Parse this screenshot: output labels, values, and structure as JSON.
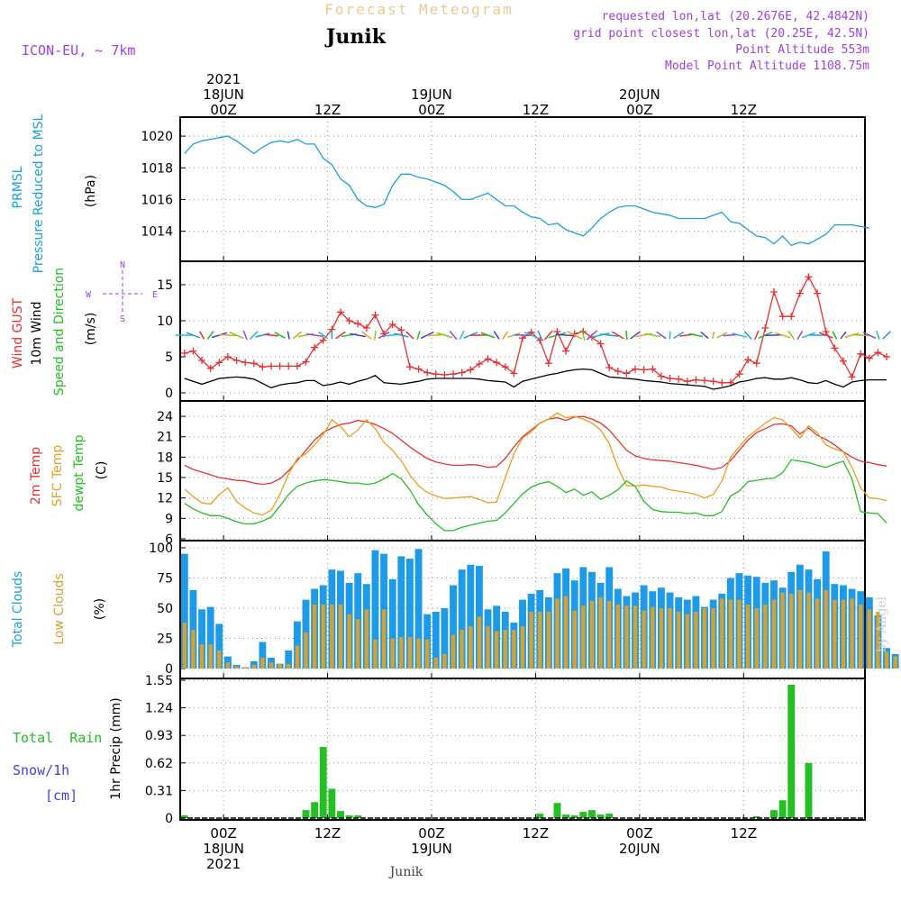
{
  "header": {
    "title_top": "Forecast Meteogram",
    "station": "Junik",
    "model": "ICON-EU, ~ 7km",
    "requested": "requested lon,lat (20.2676E, 42.4842N)",
    "gridpoint": "grid point closest lon,lat (20.25E, 42.5N)",
    "point_alt": "Point Altitude 553m",
    "model_alt": "Model Point Altitude 1108.75m",
    "footer_station": "Junik",
    "watermark": "by Angel"
  },
  "time_axis": {
    "top_labels": [
      {
        "line1": "2021",
        "line2": "18JUN",
        "line3": "00Z",
        "hour": 0
      },
      {
        "line1": "",
        "line2": "",
        "line3": "12Z",
        "hour": 12
      },
      {
        "line1": "",
        "line2": "19JUN",
        "line3": "00Z",
        "hour": 24
      },
      {
        "line1": "",
        "line2": "",
        "line3": "12Z",
        "hour": 36
      },
      {
        "line1": "",
        "line2": "20JUN",
        "line3": "00Z",
        "hour": 48
      },
      {
        "line1": "",
        "line2": "",
        "line3": "12Z",
        "hour": 60
      }
    ],
    "bottom_labels": [
      {
        "line1": "00Z",
        "line2": "18JUN",
        "line3": "2021",
        "hour": 0
      },
      {
        "line1": "12Z",
        "line2": "",
        "line3": "",
        "hour": 12
      },
      {
        "line1": "00Z",
        "line2": "19JUN",
        "line3": "",
        "hour": 24
      },
      {
        "line1": "12Z",
        "line2": "",
        "line3": "",
        "hour": 36
      },
      {
        "line1": "00Z",
        "line2": "20JUN",
        "line3": "",
        "hour": 48
      },
      {
        "line1": "12Z",
        "line2": "",
        "line3": "",
        "hour": 60
      }
    ],
    "start_hour": -5,
    "end_hour": 74
  },
  "chart_data": [
    {
      "type": "line",
      "panel": "pressure",
      "ylabel_lines": [
        "PRMSL",
        "Pressure Reduced to MSL"
      ],
      "unit": "(hPa)",
      "ylim": [
        1012.5,
        1020.8
      ],
      "yticks": [
        1014,
        1016,
        1018,
        1020
      ],
      "start_hour": -4.5,
      "step_hours": 1,
      "series": [
        {
          "name": "PRMSL",
          "color": "#1aa0e0",
          "values": [
            1018.9,
            1019.5,
            1019.7,
            1019.8,
            1019.9,
            1020.0,
            1019.7,
            1019.3,
            1018.9,
            1019.3,
            1019.6,
            1019.7,
            1019.6,
            1019.8,
            1019.5,
            1019.5,
            1018.6,
            1018.2,
            1017.3,
            1016.9,
            1016.0,
            1015.6,
            1015.5,
            1015.7,
            1016.9,
            1017.6,
            1017.6,
            1017.4,
            1017.3,
            1017.1,
            1016.9,
            1016.5,
            1016.0,
            1016.0,
            1016.2,
            1016.4,
            1016.0,
            1015.6,
            1015.6,
            1015.2,
            1014.9,
            1014.8,
            1014.4,
            1014.5,
            1014.1,
            1013.9,
            1013.7,
            1014.2,
            1014.8,
            1015.2,
            1015.5,
            1015.6,
            1015.6,
            1015.4,
            1015.2,
            1015.1,
            1015.0,
            1014.8,
            1014.8,
            1014.8,
            1014.8,
            1015.0,
            1015.2,
            1014.6,
            1014.5,
            1014.1,
            1013.7,
            1013.6,
            1013.2,
            1013.7,
            1013.1,
            1013.3,
            1013.2,
            1013.5,
            1013.8,
            1014.4,
            1014.4,
            1014.4,
            1014.3,
            1014.2
          ]
        }
      ]
    },
    {
      "type": "line",
      "panel": "wind",
      "ylabel_lines": [
        "Wind GUST",
        "10m Wind",
        "Speed and Direction"
      ],
      "unit": "(m/s)",
      "compass": {
        "n": "N",
        "s": "S",
        "e": "E",
        "w": "W"
      },
      "ylim": [
        -0.5,
        17.5
      ],
      "yticks": [
        0,
        5,
        10,
        15
      ],
      "start_hour": -4.5,
      "step_hours": 1,
      "series": [
        {
          "name": "Wind GUST",
          "color": "#e83030",
          "marker": "+",
          "values": [
            5.5,
            5.8,
            4.5,
            3.4,
            4.2,
            5.0,
            4.5,
            4.2,
            4.1,
            3.6,
            3.7,
            3.7,
            3.7,
            3.7,
            4.3,
            6.3,
            7.3,
            8.8,
            11.2,
            10.0,
            9.6,
            9.0,
            10.8,
            8.2,
            9.5,
            8.7,
            3.6,
            3.3,
            2.8,
            2.6,
            2.5,
            2.6,
            2.8,
            3.2,
            4.0,
            4.7,
            4.2,
            3.6,
            2.7,
            7.6,
            8.4,
            7.3,
            4.1,
            8.5,
            5.8,
            8.2,
            8.5,
            7.7,
            6.8,
            3.5,
            3.0,
            2.7,
            3.3,
            3.2,
            3.3,
            2.3,
            2.0,
            1.9,
            1.6,
            1.8,
            1.7,
            1.6,
            1.4,
            1.4,
            2.6,
            4.6,
            4.1,
            9.0,
            14.0,
            10.6,
            10.6,
            13.8,
            16.1,
            13.8,
            8.5,
            6.2,
            4.4,
            2.2,
            5.4,
            4.8,
            5.6,
            5.0
          ]
        },
        {
          "name": "10m Wind",
          "color": "#000000",
          "values": [
            2.0,
            1.6,
            1.2,
            1.6,
            2.0,
            2.1,
            2.2,
            2.1,
            1.9,
            1.3,
            0.7,
            1.1,
            1.3,
            1.4,
            1.7,
            1.7,
            1.0,
            1.2,
            1.5,
            1.2,
            1.6,
            1.9,
            2.4,
            1.4,
            1.3,
            1.2,
            1.4,
            1.6,
            1.9,
            2.0,
            2.0,
            2.0,
            2.0,
            2.0,
            1.9,
            1.7,
            1.6,
            1.5,
            0.8,
            1.6,
            1.9,
            2.2,
            2.5,
            2.7,
            3.0,
            3.2,
            3.3,
            3.2,
            2.7,
            2.2,
            2.1,
            2.0,
            1.9,
            1.7,
            1.6,
            1.5,
            1.3,
            1.2,
            1.1,
            1.0,
            0.9,
            0.5,
            0.7,
            1.0,
            1.5,
            1.7,
            2.0,
            2.1,
            1.9,
            1.9,
            2.1,
            1.8,
            1.4,
            1.3,
            1.7,
            1.2,
            0.8,
            1.5,
            1.7,
            1.8,
            1.8,
            1.8
          ]
        }
      ]
    },
    {
      "type": "line",
      "panel": "temperature",
      "ylabel_lines": [
        "2m Temp",
        "SFC Temp",
        "dewpt Temp"
      ],
      "unit": "(C)",
      "ylim": [
        6,
        25.2
      ],
      "yticks": [
        6,
        9,
        12,
        15,
        18,
        21,
        24
      ],
      "start_hour": -4.5,
      "step_hours": 1,
      "series": [
        {
          "name": "2m Temp",
          "color": "#e83030",
          "values": [
            16.8,
            16.2,
            15.8,
            15.4,
            15.0,
            14.8,
            14.6,
            14.5,
            14.2,
            14.0,
            14.2,
            14.8,
            16.0,
            17.5,
            19.0,
            20.5,
            21.6,
            22.3,
            22.8,
            23.0,
            23.4,
            23.2,
            22.8,
            22.2,
            21.5,
            20.5,
            19.5,
            18.6,
            17.8,
            17.3,
            17.0,
            16.8,
            16.8,
            16.9,
            16.8,
            16.5,
            16.6,
            17.8,
            19.5,
            21.0,
            22.0,
            23.0,
            23.6,
            23.8,
            23.4,
            23.9,
            24.0,
            23.6,
            23.0,
            22.0,
            20.5,
            19.0,
            18.2,
            17.8,
            17.6,
            17.5,
            17.4,
            17.2,
            17.0,
            16.8,
            16.5,
            16.2,
            16.5,
            17.5,
            19.0,
            20.5,
            21.6,
            22.2,
            22.8,
            22.9,
            22.6,
            21.4,
            22.3,
            21.2,
            20.6,
            19.8,
            18.8,
            18.0,
            17.4,
            17.2,
            16.9,
            16.7
          ]
        },
        {
          "name": "SFC Temp",
          "color": "#e8a020",
          "values": [
            13.3,
            12.2,
            11.3,
            11.1,
            12.5,
            13.5,
            11.5,
            10.5,
            9.8,
            9.5,
            10.2,
            12.5,
            15.5,
            17.8,
            18.5,
            19.8,
            21.3,
            23.5,
            22.5,
            21.0,
            22.0,
            23.5,
            22.2,
            20.2,
            19.0,
            17.5,
            15.4,
            13.8,
            12.8,
            12.3,
            11.9,
            12.0,
            12.1,
            12.2,
            11.8,
            11.3,
            11.4,
            15.0,
            18.5,
            20.8,
            21.7,
            23.0,
            23.6,
            24.5,
            23.8,
            24.0,
            23.6,
            23.0,
            22.0,
            20.0,
            16.5,
            13.8,
            13.8,
            13.9,
            13.7,
            13.6,
            13.2,
            13.0,
            12.8,
            12.5,
            12.0,
            12.5,
            14.5,
            18.0,
            19.5,
            21.0,
            22.0,
            23.0,
            23.8,
            23.5,
            22.2,
            20.8,
            22.6,
            21.6,
            19.8,
            19.2,
            18.8,
            16.5,
            13.5,
            12.0,
            11.9,
            11.6
          ]
        },
        {
          "name": "dewpt Temp",
          "color": "#22c022",
          "values": [
            11.2,
            10.4,
            9.8,
            9.4,
            9.4,
            9.0,
            8.5,
            8.2,
            8.2,
            8.6,
            9.2,
            10.8,
            12.5,
            13.7,
            14.2,
            14.5,
            14.7,
            14.6,
            14.4,
            14.2,
            14.2,
            14.0,
            14.2,
            14.8,
            15.6,
            14.8,
            13.2,
            11.0,
            9.5,
            8.2,
            7.2,
            7.2,
            7.7,
            8.0,
            8.3,
            8.6,
            8.7,
            9.8,
            11.2,
            12.6,
            13.6,
            14.1,
            14.4,
            13.7,
            12.8,
            13.3,
            12.4,
            12.9,
            11.8,
            12.4,
            13.2,
            14.5,
            13.7,
            11.5,
            10.3,
            10.0,
            9.9,
            9.9,
            9.7,
            9.8,
            9.4,
            9.4,
            10.0,
            12.3,
            13.0,
            14.4,
            14.6,
            14.8,
            14.9,
            15.7,
            17.6,
            17.4,
            17.2,
            16.8,
            16.5,
            17.0,
            17.4,
            14.8,
            10.0,
            9.8,
            9.7,
            8.3
          ]
        }
      ]
    },
    {
      "type": "bar",
      "panel": "clouds",
      "ylabel_lines": [
        "Total Clouds",
        "Low Clouds"
      ],
      "unit": "(%)",
      "ylim": [
        0,
        100
      ],
      "yticks": [
        0,
        25,
        50,
        75,
        100
      ],
      "start_hour": -4.5,
      "step_hours": 1,
      "series": [
        {
          "name": "Total Clouds",
          "color": "#1e9be8",
          "values": [
            95,
            65,
            49,
            51,
            37,
            10,
            3,
            1,
            6,
            22,
            9,
            4,
            15,
            39,
            57,
            66,
            69,
            82,
            81,
            71,
            79,
            70,
            98,
            95,
            74,
            93,
            91,
            99,
            45,
            47,
            50,
            69,
            82,
            86,
            85,
            49,
            52,
            47,
            38,
            57,
            62,
            65,
            59,
            79,
            83,
            73,
            84,
            80,
            71,
            84,
            66,
            60,
            63,
            69,
            64,
            67,
            63,
            59,
            57,
            60,
            51,
            57,
            62,
            75,
            79,
            77,
            76,
            71,
            73,
            67,
            80,
            86,
            82,
            74,
            97,
            70,
            69,
            66,
            64,
            59,
            44,
            17,
            12
          ]
        },
        {
          "name": "Low Clouds",
          "color": "#d8a030",
          "values": [
            38,
            32,
            20,
            20,
            15,
            5,
            2,
            1,
            3,
            9,
            5,
            4,
            4,
            19,
            30,
            53,
            53,
            53,
            53,
            45,
            41,
            49,
            24,
            49,
            25,
            26,
            26,
            25,
            24,
            9,
            12,
            28,
            32,
            35,
            43,
            35,
            31,
            32,
            32,
            35,
            47,
            47,
            47,
            58,
            60,
            48,
            52,
            56,
            59,
            56,
            53,
            52,
            52,
            48,
            51,
            50,
            50,
            47,
            45,
            47,
            50,
            50,
            58,
            57,
            57,
            53,
            50,
            53,
            57,
            63,
            62,
            65,
            63,
            58,
            65,
            57,
            57,
            58,
            53,
            49,
            47,
            14,
            10
          ]
        }
      ]
    },
    {
      "type": "bar",
      "panel": "precipitation",
      "ylabel_lines": [
        "1hr Precip (mm)"
      ],
      "legend": {
        "total_rain": "Total  Rain",
        "snow": "Snow/1h",
        "snow_unit": "[cm]"
      },
      "ylim": [
        0,
        1.55
      ],
      "yticks": [
        "0",
        "0.31",
        "0.62",
        "0.93",
        "1.24",
        "1.55"
      ],
      "ytick_values": [
        0,
        0.31,
        0.62,
        0.93,
        1.24,
        1.55
      ],
      "start_hour": -4.5,
      "step_hours": 1,
      "series": [
        {
          "name": "Total Rain",
          "color": "#22c022",
          "values": [
            0.03,
            0,
            0,
            0,
            0,
            0,
            0,
            0,
            0,
            0,
            0,
            0,
            0,
            0,
            0.09,
            0.18,
            0.8,
            0.33,
            0.08,
            0.03,
            0.03,
            0,
            0,
            0,
            0,
            0,
            0,
            0,
            0,
            0,
            0,
            0,
            0,
            0,
            0,
            0,
            0,
            0,
            0,
            0,
            0,
            0.05,
            0,
            0.17,
            0.04,
            0.03,
            0.07,
            0.09,
            0.04,
            0.05,
            0,
            0,
            0,
            0,
            0,
            0,
            0,
            0,
            0,
            0,
            0,
            0,
            0,
            0,
            0,
            0,
            0.02,
            0,
            0.09,
            0.2,
            1.5,
            0,
            0.62,
            0,
            0,
            0,
            0,
            0,
            0,
            0,
            0,
            0
          ]
        }
      ]
    }
  ],
  "colors": {
    "purple": "#a040e0",
    "cyan": "#1aa0e0",
    "green": "#22c022",
    "red": "#e83030",
    "orange": "#e8a020",
    "blue": "#4040e0",
    "title_orange": "#f0c890",
    "grid": "#909090"
  }
}
